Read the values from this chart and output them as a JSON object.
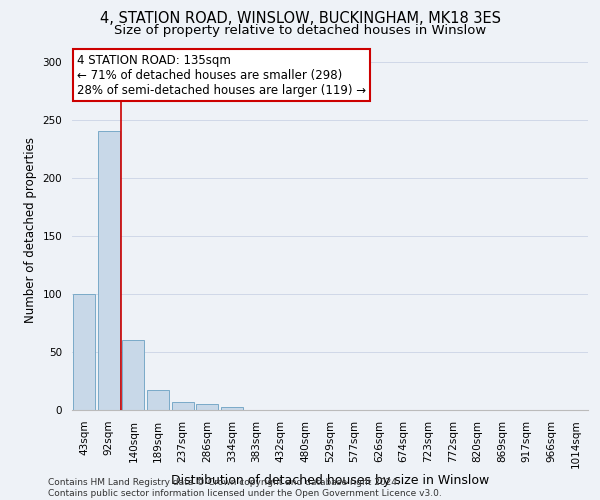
{
  "title1": "4, STATION ROAD, WINSLOW, BUCKINGHAM, MK18 3ES",
  "title2": "Size of property relative to detached houses in Winslow",
  "xlabel": "Distribution of detached houses by size in Winslow",
  "ylabel": "Number of detached properties",
  "footer": "Contains HM Land Registry data © Crown copyright and database right 2024.\nContains public sector information licensed under the Open Government Licence v3.0.",
  "bar_labels": [
    "43sqm",
    "92sqm",
    "140sqm",
    "189sqm",
    "237sqm",
    "286sqm",
    "334sqm",
    "383sqm",
    "432sqm",
    "480sqm",
    "529sqm",
    "577sqm",
    "626sqm",
    "674sqm",
    "723sqm",
    "772sqm",
    "820sqm",
    "869sqm",
    "917sqm",
    "966sqm",
    "1014sqm"
  ],
  "bar_values": [
    100,
    240,
    60,
    17,
    7,
    5,
    3,
    0,
    0,
    0,
    0,
    0,
    0,
    0,
    0,
    0,
    0,
    0,
    0,
    0,
    0
  ],
  "bar_color": "#c8d8e8",
  "bar_edge_color": "#7aaac8",
  "annotation_line_label": "4 STATION ROAD: 135sqm",
  "annotation_text_line2": "← 71% of detached houses are smaller (298)",
  "annotation_text_line3": "28% of semi-detached houses are larger (119) →",
  "annotation_box_color": "#ffffff",
  "annotation_box_edge": "#cc0000",
  "vline_color": "#cc0000",
  "ylim": [
    0,
    310
  ],
  "yticks": [
    0,
    50,
    100,
    150,
    200,
    250,
    300
  ],
  "grid_color": "#d0d8e8",
  "bg_color": "#eef2f7",
  "title1_fontsize": 10.5,
  "title2_fontsize": 9.5,
  "tick_fontsize": 7.5,
  "ylabel_fontsize": 8.5,
  "xlabel_fontsize": 9,
  "footer_fontsize": 6.5,
  "annotation_fontsize": 8.5
}
